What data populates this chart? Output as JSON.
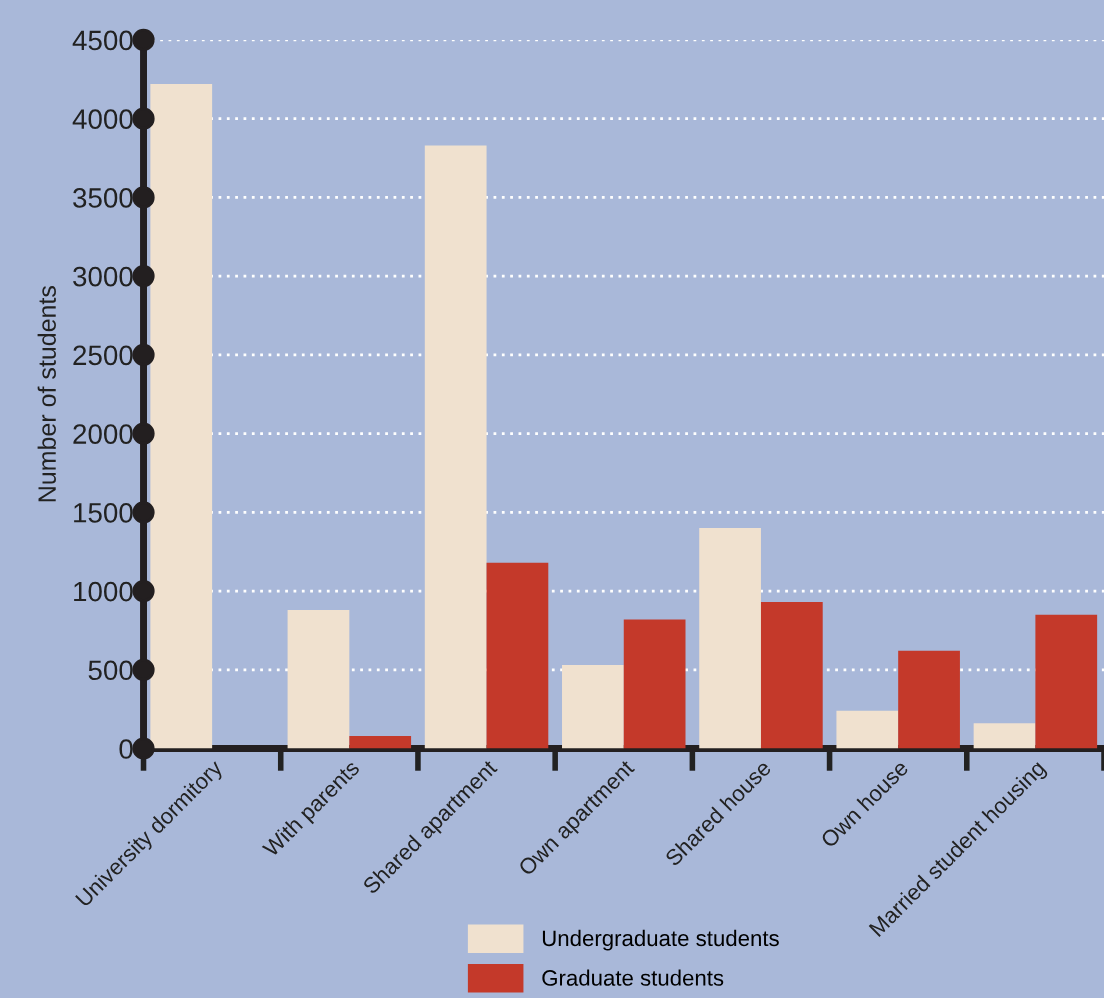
{
  "chart_data": {
    "type": "bar",
    "ylabel": "Number of students",
    "categories": [
      "University dormitory",
      "With parents",
      "Shared apartment",
      "Own apartment",
      "Shared house",
      "Own house",
      "Married student housing"
    ],
    "series": [
      {
        "name": "Undergraduate students",
        "color": "#f0e1cf",
        "values": [
          4220,
          880,
          3830,
          530,
          1400,
          240,
          160
        ]
      },
      {
        "name": "Graduate students",
        "color": "#c4392a",
        "values": [
          0,
          80,
          1180,
          820,
          930,
          620,
          850
        ]
      }
    ],
    "ylim": [
      0,
      4500
    ],
    "yticks": [
      0,
      500,
      1000,
      1500,
      2000,
      2500,
      3000,
      3500,
      4000,
      4500
    ],
    "grid": "y",
    "legend": "bottom"
  }
}
